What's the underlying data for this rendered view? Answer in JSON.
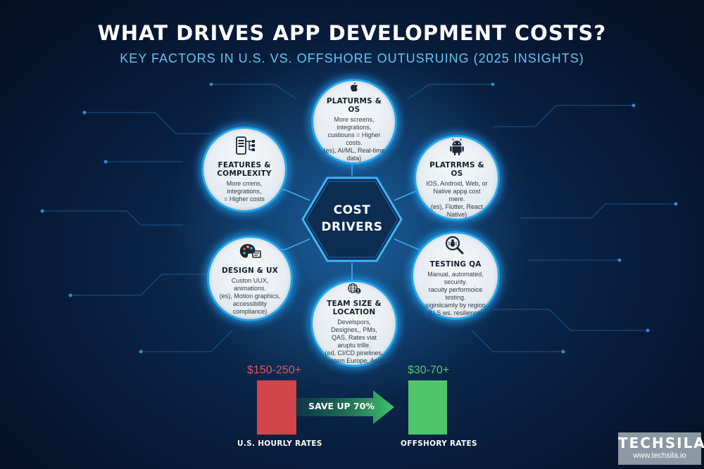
{
  "header": {
    "title": "WHAT DRIVES APP DEVELOPMENT COSTS?",
    "subtitle": "KEY FACTORS IN U.S. VS. OFFSHORE OUTUSRUING (2025 INSIGHTS)"
  },
  "center": {
    "line1": "COST",
    "line2": "DRIVERS"
  },
  "nodes": [
    {
      "title": "PLATURMS & OS",
      "desc": [
        "More screens, integrations,",
        "custiouns = Higher costs.",
        "(es), AI/ML, Real-time data)"
      ],
      "icon": "apple-icon"
    },
    {
      "title": "FEATURES & COMPLEXITY",
      "desc": [
        "More crrens, integrations,",
        "= Higher costs"
      ],
      "icon": "phone-flowchart-icon"
    },
    {
      "title": "PLATRRMS & OS",
      "desc": [
        "IOS, Android, Web, or",
        "Native appa̧ cost mere.",
        "(es), Flutter, React Native)"
      ],
      "icon": "android-icon"
    },
    {
      "title": "DESIGN & UX",
      "desc": [
        "Custon UUX, animations.",
        "(es), Motion graphics,",
        "accessibility",
        "compliance)"
      ],
      "icon": "palette-icon"
    },
    {
      "title": "TESTING QA",
      "desc": [
        "Manual, automated, security.",
        "racuity performoice testing.",
        "siginiicamly by region",
        "(U.S ws. resilience)"
      ],
      "icon": "magnifier-bug-icon"
    },
    {
      "title": "TEAM SIZE & LOCATION",
      "desc": [
        "Develspors, Designes,, PMs,",
        "QAS, Rates viat aruptu trille.",
        "(ed, CI/CD pinelines,",
        "Esstem Europe, Asia)"
      ],
      "icon": "globe-person-icon"
    }
  ],
  "comparison": {
    "arrow_label": "SAVE UP 70%",
    "us": {
      "rate": "$150-250+",
      "label": "U.S. HOURLY RATES",
      "color": "#d2454a"
    },
    "offshore": {
      "rate": "$30-70+",
      "label": "OFFSHORY RATES",
      "color": "#4fc46a"
    }
  },
  "brand": {
    "name": "TECHSILA",
    "url": "www.techsila.io"
  },
  "colors": {
    "accent": "#1ea5ea",
    "subtitle": "#5fc8f2",
    "background": "#0a2447"
  }
}
